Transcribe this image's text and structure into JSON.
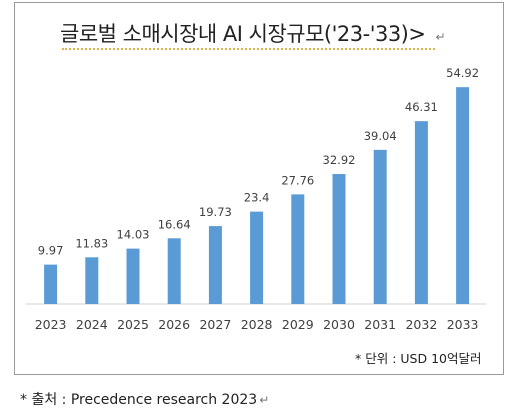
{
  "chart_data": {
    "type": "bar",
    "title": "글로벌 소매시장내 AI 시장규모('23-'33)>",
    "categories": [
      "2023",
      "2024",
      "2025",
      "2026",
      "2027",
      "2028",
      "2029",
      "2030",
      "2031",
      "2032",
      "2033"
    ],
    "values": [
      9.97,
      11.83,
      14.03,
      16.64,
      19.73,
      23.4,
      27.76,
      32.92,
      39.04,
      46.31,
      54.92
    ],
    "value_labels": [
      "9.97",
      "11.83",
      "14.03",
      "16.64",
      "19.73",
      "23.4",
      "27.76",
      "32.92",
      "39.04",
      "46.31",
      "54.92"
    ],
    "ylim": [
      0,
      58
    ],
    "grid": false,
    "legend": "none",
    "bar_color": "#5b9bd5"
  },
  "notes": {
    "unit": "* 단위 : USD 10억달러",
    "source": "* 출처 : Precedence research 2023"
  },
  "colors": {
    "bar": "#5b9bd5",
    "axis": "#d0d0d0",
    "text": "#404040"
  }
}
